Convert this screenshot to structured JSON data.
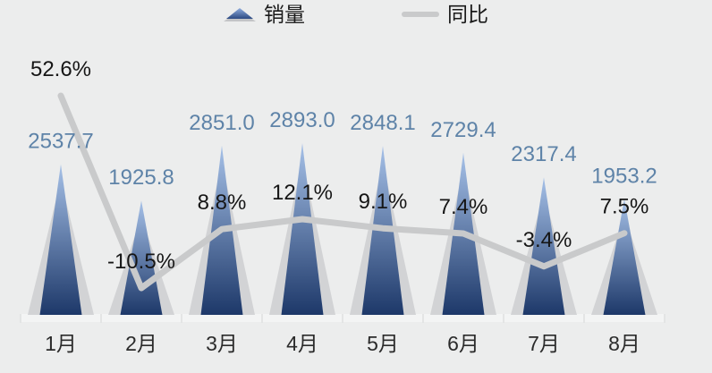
{
  "legend": {
    "series1_label": "销量",
    "series2_label": "同比"
  },
  "colors": {
    "background": "#ECEDED",
    "bar_gradient_top": "#A6C1E8",
    "bar_gradient_bottom": "#1D3869",
    "bar_shadow": "#D2D3D5",
    "yoy_line": "#C9CACB",
    "value_label": "#5E83A8",
    "pct_label": "#161616",
    "month_label": "#2B2B2B",
    "axis_band": "#F3F4F4",
    "axis_tick": "#DFE0E0"
  },
  "chart_data": {
    "type": "bar+line combo",
    "categories": [
      "1月",
      "2月",
      "3月",
      "4月",
      "5月",
      "6月",
      "7月",
      "8月"
    ],
    "series": [
      {
        "name": "销量",
        "type": "bar",
        "shape": "triangle",
        "values": [
          2537.7,
          1925.8,
          2851.0,
          2893.0,
          2848.1,
          2729.4,
          2317.4,
          1953.2
        ],
        "labels": [
          "2537.7",
          "1925.8",
          "2851.0",
          "2893.0",
          "2848.1",
          "2729.4",
          "2317.4",
          "1953.2"
        ]
      },
      {
        "name": "同比",
        "type": "line",
        "unit": "%",
        "values": [
          52.6,
          -10.5,
          8.8,
          12.1,
          9.1,
          7.4,
          -3.4,
          7.5
        ],
        "labels": [
          "52.6%",
          "-10.5%",
          "8.8%",
          "12.1%",
          "9.1%",
          "7.4%",
          "-3.4%",
          "7.5%"
        ]
      }
    ],
    "title": "",
    "xlabel": "",
    "ylabel": "",
    "legend_position": "top",
    "grid": false,
    "value_axis_visible": false
  }
}
